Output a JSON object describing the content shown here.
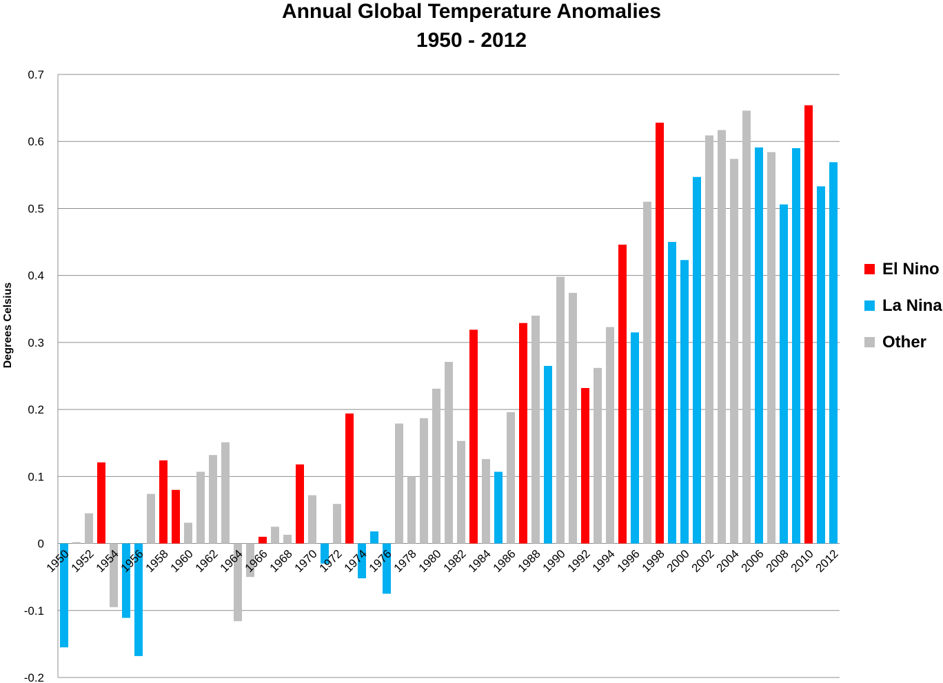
{
  "chart_data": {
    "type": "bar",
    "title": "Annual Global Temperature Anomalies",
    "subtitle": "1950 - 2012",
    "xlabel": "",
    "ylabel": "Degrees Celsius",
    "ylim": [
      -0.2,
      0.7
    ],
    "yticks": [
      "-0.2",
      "-0.1",
      "0",
      "0.1",
      "0.2",
      "0.3",
      "0.4",
      "0.5",
      "0.6",
      "0.7"
    ],
    "ytick_values": [
      -0.2,
      -0.1,
      0,
      0.1,
      0.2,
      0.3,
      0.4,
      0.5,
      0.6,
      0.7
    ],
    "grid": true,
    "legend_position": "right",
    "categories": [
      1950,
      1951,
      1952,
      1953,
      1954,
      1955,
      1956,
      1957,
      1958,
      1959,
      1960,
      1961,
      1962,
      1963,
      1964,
      1965,
      1966,
      1967,
      1968,
      1969,
      1970,
      1971,
      1972,
      1973,
      1974,
      1975,
      1976,
      1977,
      1978,
      1979,
      1980,
      1981,
      1982,
      1983,
      1984,
      1985,
      1986,
      1987,
      1988,
      1989,
      1990,
      1991,
      1992,
      1993,
      1994,
      1995,
      1996,
      1997,
      1998,
      1999,
      2000,
      2001,
      2002,
      2003,
      2004,
      2005,
      2006,
      2007,
      2008,
      2009,
      2010,
      2011,
      2012
    ],
    "xtick_labels": [
      "1950",
      "1952",
      "1954",
      "1956",
      "1958",
      "1960",
      "1962",
      "1964",
      "1966",
      "1968",
      "1970",
      "1972",
      "1974",
      "1976",
      "1978",
      "1980",
      "1982",
      "1984",
      "1986",
      "1988",
      "1990",
      "1992",
      "1994",
      "1996",
      "1998",
      "2000",
      "2002",
      "2004",
      "2006",
      "2008",
      "2010",
      "2012"
    ],
    "values": [
      -0.155,
      0.002,
      0.045,
      0.121,
      -0.095,
      -0.111,
      -0.168,
      0.074,
      0.124,
      0.08,
      0.031,
      0.107,
      0.132,
      0.151,
      -0.116,
      -0.05,
      0.01,
      0.025,
      0.013,
      0.118,
      0.072,
      -0.03,
      0.059,
      0.194,
      -0.052,
      0.018,
      -0.075,
      0.179,
      0.1,
      0.187,
      0.231,
      0.271,
      0.153,
      0.319,
      0.126,
      0.107,
      0.196,
      0.329,
      0.34,
      0.265,
      0.398,
      0.374,
      0.232,
      0.262,
      0.323,
      0.446,
      0.315,
      0.51,
      0.628,
      0.45,
      0.423,
      0.547,
      0.609,
      0.617,
      0.574,
      0.646,
      0.591,
      0.584,
      0.506,
      0.59,
      0.654,
      0.533,
      0.569
    ],
    "categories_type": [
      "L",
      "O",
      "O",
      "E",
      "O",
      "L",
      "L",
      "O",
      "E",
      "E",
      "O",
      "O",
      "O",
      "O",
      "O",
      "O",
      "E",
      "O",
      "O",
      "E",
      "O",
      "L",
      "O",
      "E",
      "L",
      "L",
      "L",
      "O",
      "O",
      "O",
      "O",
      "O",
      "O",
      "E",
      "O",
      "L",
      "O",
      "E",
      "O",
      "L",
      "O",
      "O",
      "E",
      "O",
      "O",
      "E",
      "L",
      "O",
      "E",
      "L",
      "L",
      "L",
      "O",
      "O",
      "O",
      "O",
      "L",
      "O",
      "L",
      "L",
      "E",
      "L",
      "L"
    ],
    "legend": [
      {
        "key": "E",
        "name": "El Nino",
        "color": "#ff0000"
      },
      {
        "key": "L",
        "name": "La Nina",
        "color": "#00b0f0"
      },
      {
        "key": "O",
        "name": "Other",
        "color": "#bfbfbf"
      }
    ]
  }
}
